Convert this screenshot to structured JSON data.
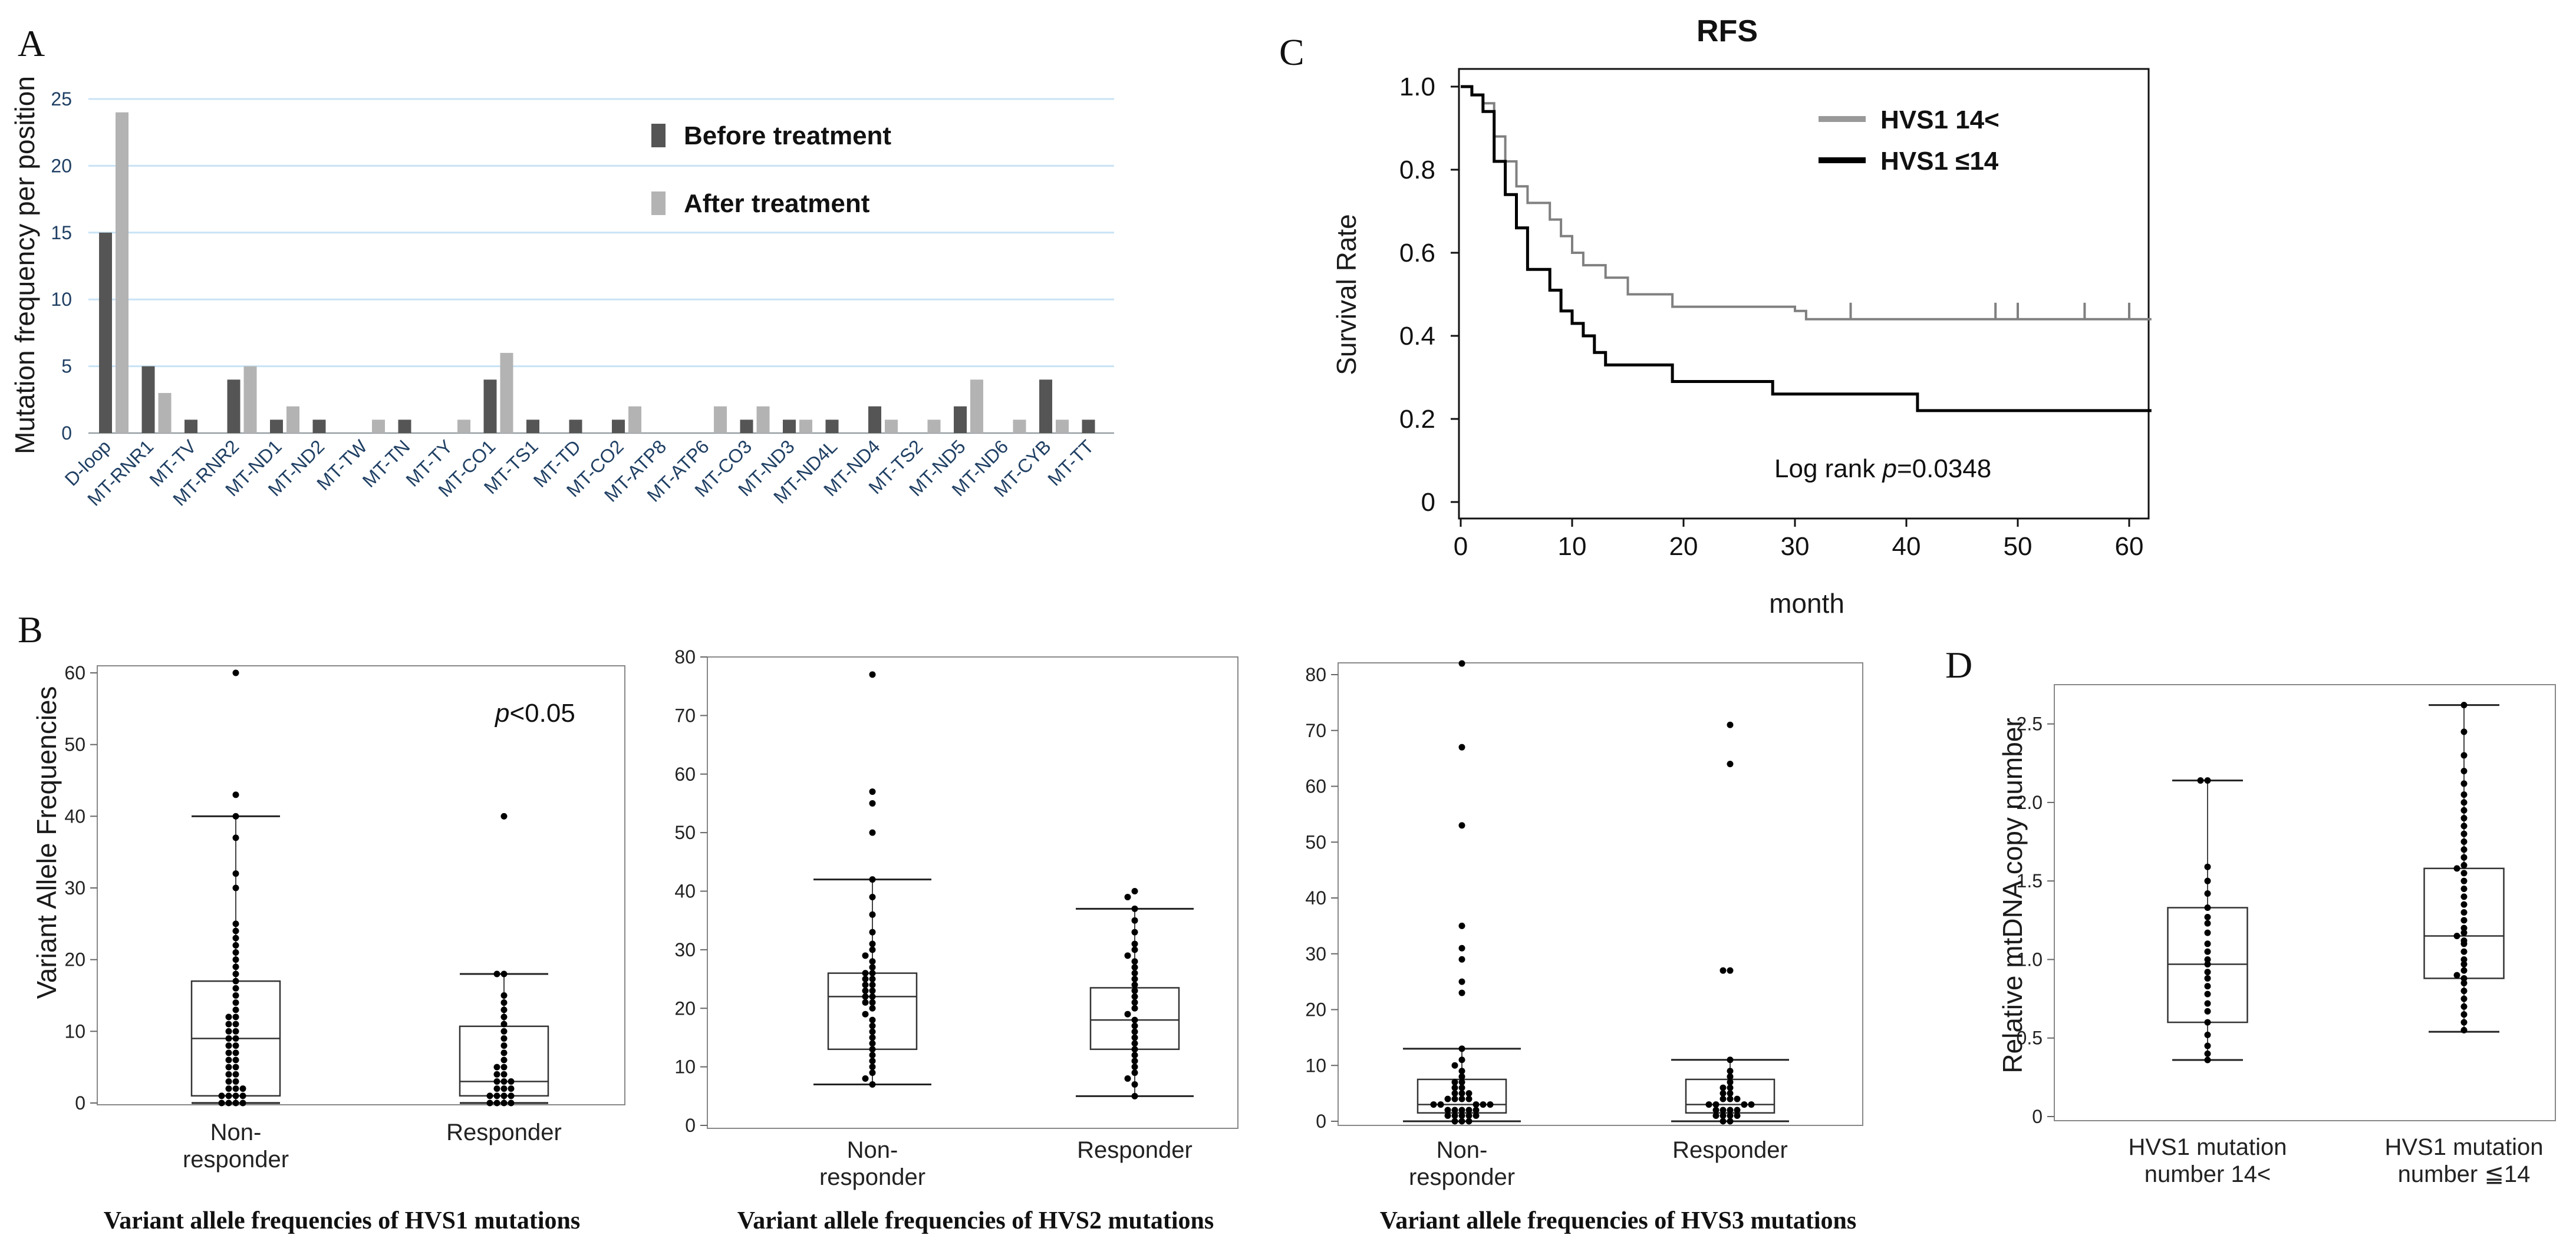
{
  "colors": {
    "before": "#555555",
    "after": "#b3b3b3",
    "grid": "#c9e3f5",
    "hvs_high": "#808080",
    "hvs_low": "#000000"
  },
  "panels": {
    "A": "A",
    "B": "B",
    "C": "C",
    "D": "D"
  },
  "chart_data": [
    {
      "id": "A",
      "type": "bar",
      "ylabel": "Mutation frequency per position",
      "ylim": [
        0,
        25
      ],
      "yticks": [
        "0",
        "5",
        "10",
        "15",
        "20",
        "25"
      ],
      "grid": true,
      "legend_position": "top-right",
      "categories": [
        "D-loop",
        "MT-RNR1",
        "MT-TV",
        "MT-RNR2",
        "MT-ND1",
        "MT-ND2",
        "MT-TW",
        "MT-TN",
        "MT-TY",
        "MT-CO1",
        "MT-TS1",
        "MT-TD",
        "MT-CO2",
        "MT-ATP8",
        "MT-ATP6",
        "MT-CO3",
        "MT-ND3",
        "MT-ND4L",
        "MT-ND4",
        "MT-TS2",
        "MT-ND5",
        "MT-ND6",
        "MT-CYB",
        "MT-TT"
      ],
      "series": [
        {
          "name": "Before treatment",
          "values": [
            15,
            5,
            1,
            4,
            1,
            1,
            0,
            1,
            0,
            4,
            1,
            1,
            1,
            0,
            0,
            1,
            1,
            1,
            2,
            0,
            2,
            0,
            4,
            1
          ]
        },
        {
          "name": "After treatment",
          "values": [
            24,
            3,
            0,
            5,
            2,
            0,
            1,
            0,
            1,
            6,
            0,
            0,
            2,
            0,
            2,
            2,
            1,
            0,
            1,
            1,
            4,
            1,
            1,
            0
          ]
        }
      ]
    },
    {
      "id": "C",
      "type": "line",
      "title": "RFS",
      "xlabel": "month",
      "ylabel": "Survival Rate",
      "xlim": [
        0,
        62
      ],
      "ylim": [
        0,
        1.0
      ],
      "xticks": [
        "0",
        "10",
        "20",
        "30",
        "40",
        "50",
        "60"
      ],
      "yticks": [
        "0",
        "0.2",
        "0.4",
        "0.6",
        "0.8",
        "1.0"
      ],
      "annotation_prefix": "Log rank ",
      "annotation_p": "p",
      "annotation_suffix": "=0.0348",
      "legend_position": "top-right",
      "series": [
        {
          "name": "HVS1 14<",
          "color_key": "hvs_high",
          "steps": [
            [
              0,
              1.0
            ],
            [
              1,
              0.98
            ],
            [
              2,
              0.96
            ],
            [
              3,
              0.88
            ],
            [
              4,
              0.82
            ],
            [
              5,
              0.76
            ],
            [
              6,
              0.72
            ],
            [
              8,
              0.68
            ],
            [
              9,
              0.64
            ],
            [
              10,
              0.6
            ],
            [
              11,
              0.57
            ],
            [
              13,
              0.54
            ],
            [
              15,
              0.5
            ],
            [
              19,
              0.47
            ],
            [
              22,
              0.47
            ],
            [
              30,
              0.46
            ],
            [
              31,
              0.44
            ],
            [
              62,
              0.44
            ]
          ],
          "censors": [
            35,
            48,
            50,
            56,
            60
          ]
        },
        {
          "name": "HVS1 ≤14",
          "color_key": "hvs_low",
          "steps": [
            [
              0,
              1.0
            ],
            [
              1,
              0.98
            ],
            [
              2,
              0.94
            ],
            [
              3,
              0.82
            ],
            [
              4,
              0.74
            ],
            [
              5,
              0.66
            ],
            [
              6,
              0.56
            ],
            [
              8,
              0.51
            ],
            [
              9,
              0.46
            ],
            [
              10,
              0.43
            ],
            [
              11,
              0.4
            ],
            [
              12,
              0.36
            ],
            [
              13,
              0.33
            ],
            [
              19,
              0.29
            ],
            [
              28,
              0.26
            ],
            [
              41,
              0.22
            ],
            [
              62,
              0.22
            ]
          ],
          "censors": []
        }
      ]
    },
    {
      "id": "B1",
      "type": "scatter",
      "ylabel": "Variant Allele Frequencies",
      "ylim": [
        0,
        60
      ],
      "yticks": [
        "0",
        "10",
        "20",
        "30",
        "40",
        "50",
        "60"
      ],
      "categories": [
        "Non-\nresponder",
        "Responder"
      ],
      "caption": "Variant allele frequencies of HVS1 mutations",
      "annotation_p": "p",
      "annotation_suffix": "<0.05",
      "boxes": [
        {
          "min": 0,
          "q1": 1,
          "median": 9,
          "q3": 17,
          "max": 40
        },
        {
          "min": 0,
          "q1": 1,
          "median": 3,
          "q3": 10.7,
          "max": 18
        }
      ],
      "points": [
        [
          60,
          43,
          40,
          37,
          32,
          30,
          25,
          24,
          23,
          22,
          21,
          20,
          19,
          18,
          17,
          16,
          15,
          14,
          13,
          12,
          12,
          11,
          11,
          10,
          10,
          9,
          9,
          8,
          8,
          7,
          7,
          6,
          6,
          5,
          5,
          4,
          4,
          3,
          3,
          2,
          2,
          2,
          1,
          1,
          1,
          1,
          0,
          0,
          0,
          0
        ],
        [
          40,
          18,
          18,
          15,
          14,
          13,
          12,
          11,
          10,
          9,
          8,
          7,
          6,
          5,
          5,
          4,
          4,
          3,
          3,
          3,
          2,
          2,
          2,
          1,
          1,
          1,
          1,
          0,
          0,
          0,
          0
        ]
      ]
    },
    {
      "id": "B2",
      "type": "scatter",
      "ylim": [
        0,
        80
      ],
      "yticks": [
        "0",
        "10",
        "20",
        "30",
        "40",
        "50",
        "60",
        "70",
        "80"
      ],
      "categories": [
        "Non-\nresponder",
        "Responder"
      ],
      "caption": "Variant allele frequencies of HVS2 mutations",
      "boxes": [
        {
          "min": 7,
          "q1": 13,
          "median": 22,
          "q3": 26,
          "max": 42
        },
        {
          "min": 5,
          "q1": 13,
          "median": 18,
          "q3": 23.5,
          "max": 37
        }
      ],
      "points": [
        [
          77,
          57,
          55,
          50,
          42,
          39,
          36,
          33,
          31,
          30,
          29,
          28,
          27,
          26,
          26,
          25,
          25,
          24,
          24,
          23,
          23,
          22,
          22,
          21,
          21,
          20,
          19,
          18,
          17,
          16,
          15,
          14,
          13,
          12,
          11,
          10,
          9,
          8,
          7
        ],
        [
          40,
          39,
          37,
          35,
          33,
          31,
          30,
          29,
          28,
          27,
          26,
          25,
          24,
          23,
          22,
          21,
          20,
          19,
          18,
          17,
          16,
          15,
          14,
          13,
          12,
          11,
          10,
          9,
          8,
          7,
          5
        ]
      ]
    },
    {
      "id": "B3",
      "type": "scatter",
      "ylim": [
        0,
        80
      ],
      "yticks": [
        "0",
        "10",
        "20",
        "30",
        "40",
        "50",
        "60",
        "70",
        "80"
      ],
      "categories": [
        "Non-\nresponder",
        "Responder"
      ],
      "caption": "Variant allele frequencies of HVS3 mutations",
      "boxes": [
        {
          "min": 0,
          "q1": 1.5,
          "median": 3,
          "q3": 7.5,
          "max": 13
        },
        {
          "min": 0,
          "q1": 1.5,
          "median": 3,
          "q3": 7.5,
          "max": 11
        }
      ],
      "points": [
        [
          82,
          67,
          53,
          35,
          31,
          29,
          25,
          23,
          13,
          11,
          10,
          9,
          8,
          7,
          7,
          6,
          6,
          5,
          5,
          5,
          4,
          4,
          4,
          4,
          3,
          3,
          3,
          3,
          3,
          2,
          2,
          2,
          2,
          2,
          1,
          1,
          1,
          1,
          1,
          0,
          0,
          0
        ],
        [
          71,
          64,
          27,
          27,
          11,
          9,
          8,
          7,
          6,
          6,
          5,
          5,
          4,
          4,
          4,
          3,
          3,
          3,
          3,
          2,
          2,
          2,
          2,
          1,
          1,
          1,
          1,
          0,
          0
        ]
      ]
    },
    {
      "id": "D",
      "type": "scatter",
      "ylabel": "Relative mtDNA copy number",
      "ylim": [
        0,
        2.75
      ],
      "yticks": [
        "0",
        "0.5",
        "1.0",
        "1.5",
        "2.0",
        "2.5"
      ],
      "categories": [
        "HVS1 mutation\nnumber 14<",
        "HVS1 mutation\nnumber ≦14"
      ],
      "boxes": [
        {
          "min": 0.36,
          "q1": 0.6,
          "median": 0.97,
          "q3": 1.33,
          "max": 2.14
        },
        {
          "min": 0.54,
          "q1": 0.88,
          "median": 1.15,
          "q3": 1.58,
          "max": 2.62
        }
      ],
      "points": [
        [
          2.14,
          2.14,
          1.59,
          1.5,
          1.42,
          1.33,
          1.27,
          1.23,
          1.17,
          1.1,
          1.05,
          1.0,
          0.97,
          0.92,
          0.88,
          0.83,
          0.78,
          0.72,
          0.67,
          0.6,
          0.52,
          0.45,
          0.4,
          0.36
        ],
        [
          2.62,
          2.45,
          2.3,
          2.2,
          2.12,
          2.05,
          2.0,
          1.95,
          1.9,
          1.85,
          1.8,
          1.75,
          1.7,
          1.65,
          1.6,
          1.58,
          1.55,
          1.5,
          1.45,
          1.4,
          1.35,
          1.3,
          1.25,
          1.2,
          1.17,
          1.15,
          1.12,
          1.1,
          1.05,
          1.0,
          0.97,
          0.93,
          0.9,
          0.88,
          0.85,
          0.8,
          0.75,
          0.7,
          0.65,
          0.6,
          0.55
        ]
      ]
    }
  ]
}
